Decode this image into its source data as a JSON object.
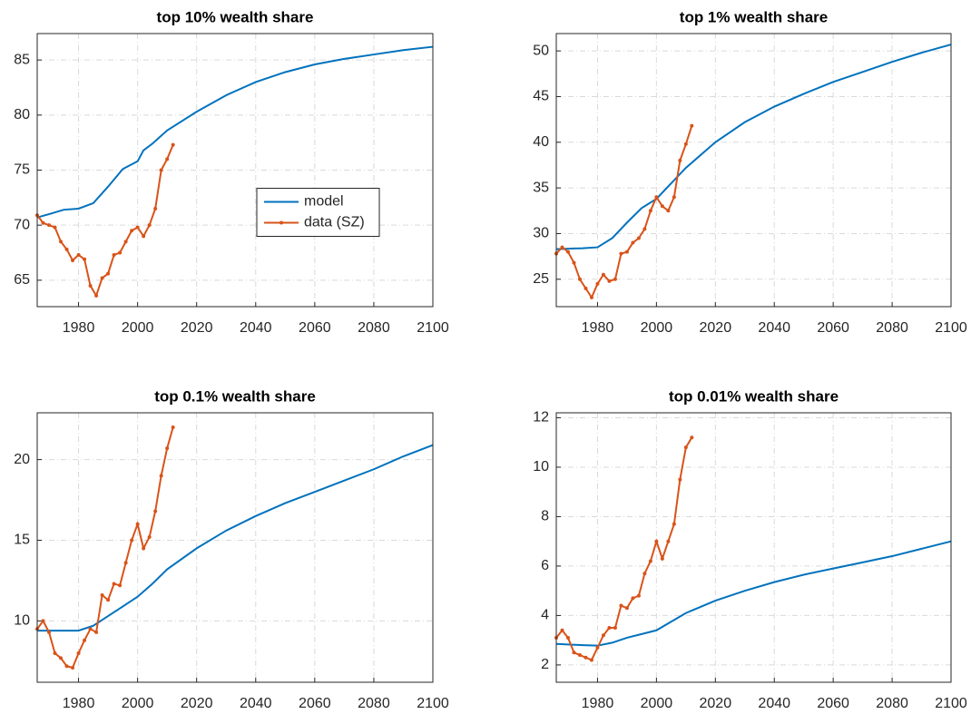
{
  "chart_data": [
    {
      "type": "line",
      "title": "top 10% wealth share",
      "xlim": [
        1966,
        2100
      ],
      "xticks": [
        1980,
        2000,
        2020,
        2040,
        2060,
        2080,
        2100
      ],
      "ylim": [
        62.6,
        87.4
      ],
      "yticks": [
        65,
        70,
        75,
        80,
        85
      ],
      "grid": true,
      "legend": "east",
      "series": [
        {
          "name": "model",
          "color": "#0072bd",
          "x": [
            1966,
            1970,
            1975,
            1980,
            1985,
            1990,
            1995,
            2000,
            2002,
            2005,
            2010,
            2020,
            2030,
            2040,
            2050,
            2060,
            2070,
            2080,
            2090,
            2100
          ],
          "values": [
            70.7,
            71.0,
            71.4,
            71.5,
            72.0,
            73.5,
            75.1,
            75.8,
            76.8,
            77.4,
            78.6,
            80.3,
            81.8,
            83.0,
            83.9,
            84.6,
            85.1,
            85.5,
            85.9,
            86.2
          ]
        },
        {
          "name": "data (SZ)",
          "color": "#d95319",
          "marker": true,
          "x": [
            1966,
            1968,
            1970,
            1972,
            1974,
            1976,
            1978,
            1980,
            1982,
            1984,
            1986,
            1988,
            1990,
            1992,
            1994,
            1996,
            1998,
            2000,
            2002,
            2004,
            2006,
            2008,
            2010,
            2012
          ],
          "values": [
            70.9,
            70.2,
            70.0,
            69.8,
            68.5,
            67.8,
            66.8,
            67.3,
            66.9,
            64.5,
            63.6,
            65.2,
            65.6,
            67.3,
            67.5,
            68.5,
            69.5,
            69.8,
            69.0,
            70.0,
            71.5,
            75.0,
            76.0,
            77.3
          ]
        }
      ]
    },
    {
      "type": "line",
      "title": "top 1% wealth share",
      "xlim": [
        1966,
        2100
      ],
      "xticks": [
        1980,
        2000,
        2020,
        2040,
        2060,
        2080,
        2100
      ],
      "ylim": [
        22,
        51.9
      ],
      "yticks": [
        25,
        30,
        35,
        40,
        45,
        50
      ],
      "grid": true,
      "series": [
        {
          "name": "model",
          "color": "#0072bd",
          "x": [
            1966,
            1975,
            1980,
            1985,
            1990,
            1995,
            2000,
            2005,
            2010,
            2020,
            2030,
            2040,
            2050,
            2060,
            2070,
            2080,
            2090,
            2100
          ],
          "values": [
            28.3,
            28.4,
            28.5,
            29.5,
            31.2,
            32.8,
            33.8,
            35.5,
            37.2,
            40.0,
            42.2,
            43.9,
            45.3,
            46.6,
            47.7,
            48.8,
            49.8,
            50.7
          ]
        },
        {
          "name": "data (SZ)",
          "color": "#d95319",
          "marker": true,
          "x": [
            1966,
            1968,
            1970,
            1972,
            1974,
            1976,
            1978,
            1980,
            1982,
            1984,
            1986,
            1988,
            1990,
            1992,
            1994,
            1996,
            1998,
            2000,
            2002,
            2004,
            2006,
            2008,
            2010,
            2012
          ],
          "values": [
            27.8,
            28.5,
            28.0,
            26.8,
            25.0,
            24.0,
            23.0,
            24.5,
            25.5,
            24.8,
            25.0,
            27.8,
            28.0,
            29.0,
            29.5,
            30.5,
            32.5,
            34.0,
            33.0,
            32.5,
            34.0,
            38.0,
            39.8,
            41.8
          ]
        }
      ]
    },
    {
      "type": "line",
      "title": "top 0.1% wealth share",
      "xlim": [
        1966,
        2100
      ],
      "xticks": [
        1980,
        2000,
        2020,
        2040,
        2060,
        2080,
        2100
      ],
      "ylim": [
        6.2,
        22.9
      ],
      "yticks": [
        10,
        15,
        20
      ],
      "grid": true,
      "series": [
        {
          "name": "model",
          "color": "#0072bd",
          "x": [
            1966,
            1975,
            1980,
            1985,
            1990,
            1995,
            2000,
            2005,
            2010,
            2020,
            2030,
            2040,
            2050,
            2060,
            2070,
            2080,
            2090,
            2100
          ],
          "values": [
            9.4,
            9.4,
            9.4,
            9.7,
            10.3,
            10.9,
            11.5,
            12.3,
            13.2,
            14.5,
            15.6,
            16.5,
            17.3,
            18.0,
            18.7,
            19.4,
            20.2,
            20.9
          ]
        },
        {
          "name": "data (SZ)",
          "color": "#d95319",
          "marker": true,
          "x": [
            1966,
            1968,
            1970,
            1972,
            1974,
            1976,
            1978,
            1980,
            1982,
            1984,
            1986,
            1988,
            1990,
            1992,
            1994,
            1996,
            1998,
            2000,
            2002,
            2004,
            2006,
            2008,
            2010,
            2012
          ],
          "values": [
            9.5,
            10.0,
            9.3,
            8.0,
            7.7,
            7.2,
            7.1,
            8.0,
            8.8,
            9.5,
            9.3,
            11.6,
            11.3,
            12.3,
            12.2,
            13.6,
            15.0,
            16.0,
            14.5,
            15.2,
            16.8,
            19.0,
            20.7,
            22.0
          ]
        }
      ]
    },
    {
      "type": "line",
      "title": "top 0.01% wealth share",
      "xlim": [
        1966,
        2100
      ],
      "xticks": [
        1980,
        2000,
        2020,
        2040,
        2060,
        2080,
        2100
      ],
      "ylim": [
        1.3,
        12.2
      ],
      "yticks": [
        2,
        4,
        6,
        8,
        10,
        12
      ],
      "grid": true,
      "series": [
        {
          "name": "model",
          "color": "#0072bd",
          "x": [
            1966,
            1975,
            1980,
            1985,
            1990,
            1995,
            2000,
            2005,
            2010,
            2020,
            2030,
            2040,
            2050,
            2060,
            2070,
            2080,
            2090,
            2100
          ],
          "values": [
            2.85,
            2.8,
            2.78,
            2.9,
            3.1,
            3.25,
            3.4,
            3.75,
            4.1,
            4.6,
            5.0,
            5.35,
            5.65,
            5.9,
            6.15,
            6.4,
            6.7,
            7.0
          ]
        },
        {
          "name": "data (SZ)",
          "color": "#d95319",
          "marker": true,
          "x": [
            1966,
            1968,
            1970,
            1972,
            1974,
            1976,
            1978,
            1980,
            1982,
            1984,
            1986,
            1988,
            1990,
            1992,
            1994,
            1996,
            1998,
            2000,
            2002,
            2004,
            2006,
            2008,
            2010,
            2012
          ],
          "values": [
            3.1,
            3.4,
            3.1,
            2.5,
            2.4,
            2.3,
            2.2,
            2.7,
            3.2,
            3.5,
            3.5,
            4.4,
            4.3,
            4.7,
            4.8,
            5.7,
            6.2,
            7.0,
            6.3,
            7.0,
            7.7,
            9.5,
            10.8,
            11.2
          ]
        }
      ]
    }
  ]
}
